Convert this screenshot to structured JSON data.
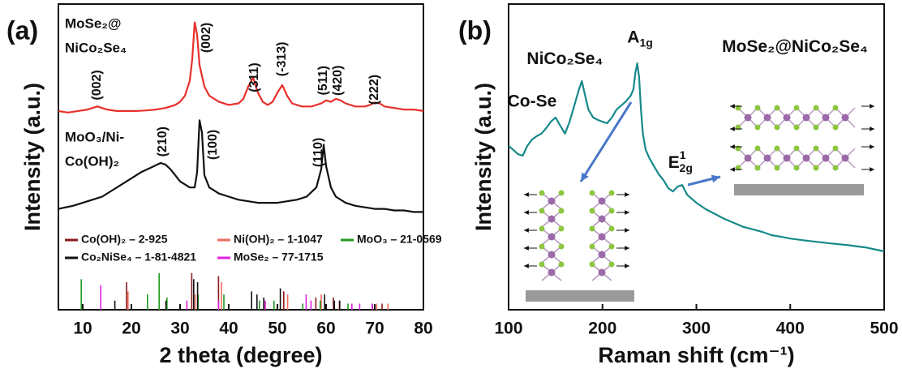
{
  "chart_data": [
    {
      "type": "line",
      "panel_label": "(a)",
      "x_label": "2 theta (degree)",
      "y_label": "Intensity (a.u.)",
      "xlim": [
        5,
        80
      ],
      "xticks": [
        10,
        20,
        30,
        40,
        50,
        60,
        70,
        80
      ],
      "ylim": [
        0,
        100
      ],
      "annotation_rotation": -90,
      "series": [
        {
          "name": [
            "MoSe₂@",
            "NiCo₂Se₄"
          ],
          "color": "#e8302c",
          "x": [
            5,
            7,
            9,
            11,
            12,
            13,
            14,
            15,
            17,
            19,
            21,
            23,
            25,
            27,
            29,
            30,
            31,
            32,
            32.5,
            33,
            33.5,
            34,
            35,
            36,
            38,
            40,
            42,
            43,
            44,
            45,
            46,
            47,
            48,
            49,
            50,
            51,
            52,
            53,
            55,
            57,
            59,
            60,
            61,
            62,
            63,
            64,
            66,
            68,
            69,
            70,
            71,
            72,
            74,
            76,
            78,
            80
          ],
          "values": [
            65,
            64.5,
            65,
            65.5,
            66,
            66.5,
            66,
            65.5,
            65,
            65,
            65,
            65.2,
            65.5,
            66,
            67,
            68,
            70,
            75,
            82,
            94,
            90,
            80,
            73,
            70,
            68,
            67,
            67.5,
            69,
            73,
            76,
            71,
            68,
            67,
            68,
            71,
            73.5,
            70,
            67.5,
            66.5,
            66.5,
            67.5,
            68.5,
            68,
            69,
            68.5,
            67.5,
            66.5,
            66.5,
            67,
            67.8,
            67.5,
            66.5,
            66,
            65.5,
            65.5,
            65
          ]
        },
        {
          "name": [
            "MoO₃/Ni-",
            "Co(OH)₂"
          ],
          "color": "#111111",
          "x": [
            5,
            8,
            10,
            12,
            14,
            16,
            18,
            20,
            22,
            24,
            26,
            27,
            28,
            29,
            30,
            31,
            32,
            33,
            33.5,
            34,
            34.5,
            35,
            36,
            38,
            40,
            42,
            44,
            46,
            48,
            50,
            52,
            54,
            56,
            58,
            59,
            59.5,
            60,
            61,
            62,
            64,
            66,
            68,
            70,
            72,
            74,
            76,
            78,
            80
          ],
          "values": [
            33,
            34,
            35,
            36,
            37,
            39,
            41,
            43,
            45,
            46.5,
            48,
            47.5,
            46,
            44,
            42,
            41,
            40,
            40,
            45,
            62,
            58,
            44,
            40,
            38,
            37,
            36,
            35.5,
            35,
            35,
            35,
            35.5,
            36,
            37,
            40,
            46,
            54,
            47,
            40,
            37,
            35,
            34,
            33.5,
            33,
            33,
            32.5,
            32.5,
            32,
            32
          ]
        }
      ],
      "references": [
        {
          "name": "Co(OH)₂ – 2-925",
          "color": "#8b1a1a",
          "x": [
            19,
            32.4,
            37.9,
            51.3,
            57.9,
            61.5,
            69.5,
            71.5
          ],
          "values": [
            9,
            12,
            11,
            6,
            4,
            4,
            2,
            2
          ]
        },
        {
          "name": "Ni(OH)₂ – 1-1047",
          "color": "#f06a5e",
          "x": [
            19.3,
            33.1,
            38.5,
            52.1,
            59,
            62.7,
            70.4,
            72.7
          ],
          "values": [
            6,
            5,
            9,
            5,
            5,
            3,
            2,
            2
          ]
        },
        {
          "name": "MoO₃ – 21-0569",
          "color": "#1f9a1f",
          "x": [
            9.7,
            23.3,
            25.7,
            27.3,
            33.7,
            39,
            46.3,
            49.3,
            55.2,
            58.8,
            64.5
          ],
          "values": [
            10,
            5,
            12,
            4,
            5,
            5,
            3,
            3,
            2,
            3,
            2
          ]
        },
        {
          "name": "Co₂NiSe₄ – 1-81-4821",
          "color": "#111111",
          "x": [
            16.6,
            27.1,
            32.8,
            33.6,
            44.7,
            45.8,
            47.2,
            50.6,
            59.7,
            61.7,
            62.8
          ],
          "values": [
            3,
            3,
            10,
            9,
            6,
            5,
            4,
            7,
            5,
            3,
            3
          ]
        },
        {
          "name": "MoSe₂ – 77-1715",
          "color": "#e020e0",
          "x": [
            13.7,
            31.4,
            37.9,
            47.5,
            55.9,
            56.9,
            65.3,
            66.9,
            69.5
          ],
          "values": [
            8,
            3,
            3,
            3,
            5,
            3,
            2,
            2,
            2
          ]
        }
      ],
      "annotations": [
        {
          "text": "(002)",
          "x": 13,
          "y": 73.5
        },
        {
          "text": "(002)",
          "x": 35.5,
          "y": 89
        },
        {
          "text": "(311)",
          "x": 45.3,
          "y": 76
        },
        {
          "text": "(-313)",
          "x": 51,
          "y": 82
        },
        {
          "text": "(511)",
          "x": 59.5,
          "y": 75
        },
        {
          "text": "(420)",
          "x": 62.5,
          "y": 75
        },
        {
          "text": "(222)",
          "x": 70,
          "y": 72
        },
        {
          "text": "(210)",
          "x": 26.5,
          "y": 55
        },
        {
          "text": "(100)",
          "x": 36.8,
          "y": 54
        },
        {
          "text": "(110)",
          "x": 58.5,
          "y": 51.5
        }
      ]
    },
    {
      "type": "line",
      "panel_label": "(b)",
      "x_label": "Raman shift (cm⁻¹)",
      "y_label": "Intensity (a.u.)",
      "xlim": [
        100,
        500
      ],
      "xticks": [
        100,
        200,
        300,
        400,
        500
      ],
      "ylim": [
        0,
        100
      ],
      "annotation_rotation": 0,
      "series": [
        {
          "color": "#16898a",
          "x": [
            100,
            105,
            110,
            115,
            120,
            125,
            130,
            135,
            140,
            145,
            150,
            155,
            160,
            165,
            170,
            175,
            178,
            180,
            185,
            190,
            195,
            200,
            205,
            210,
            215,
            220,
            225,
            230,
            233,
            235,
            237,
            239,
            241,
            243,
            246,
            250,
            255,
            260,
            265,
            270,
            275,
            280,
            285,
            290,
            295,
            300,
            310,
            320,
            330,
            340,
            350,
            360,
            370,
            380,
            390,
            400,
            420,
            440,
            460,
            480,
            500
          ],
          "values": [
            53.6,
            52.3,
            50.9,
            50.4,
            53.6,
            55.7,
            56.8,
            57.6,
            59.4,
            61.5,
            62.9,
            60.2,
            57.6,
            61.5,
            66.8,
            72.1,
            74.8,
            72.1,
            65.5,
            62.9,
            62.1,
            61.5,
            61.0,
            62.9,
            65.5,
            66.8,
            68.2,
            70.0,
            72.1,
            77.5,
            80.6,
            76.1,
            65.5,
            57.6,
            52.3,
            49.6,
            46.9,
            44.3,
            42.4,
            39.8,
            38.7,
            40.3,
            40.8,
            37.7,
            36.3,
            35.0,
            32.9,
            31.3,
            29.7,
            28.4,
            27.1,
            26.3,
            25.5,
            24.4,
            23.9,
            23.3,
            22.5,
            21.8,
            21.2,
            20.4,
            19.1
          ]
        }
      ],
      "annotations": [
        {
          "text": "Co-Se",
          "x": 125,
          "y": 68
        },
        {
          "text": "NiCo₂Se₄",
          "x": 160,
          "y": 82
        },
        {
          "text": "A",
          "sub": "1g",
          "x": 240,
          "y": 89
        },
        {
          "text": "E",
          "sup": "1",
          "sub": "2g",
          "x": 283,
          "y": 48
        },
        {
          "text": "MoSe₂@NiCo₂Se₄",
          "x": 405,
          "y": 86
        }
      ]
    }
  ]
}
